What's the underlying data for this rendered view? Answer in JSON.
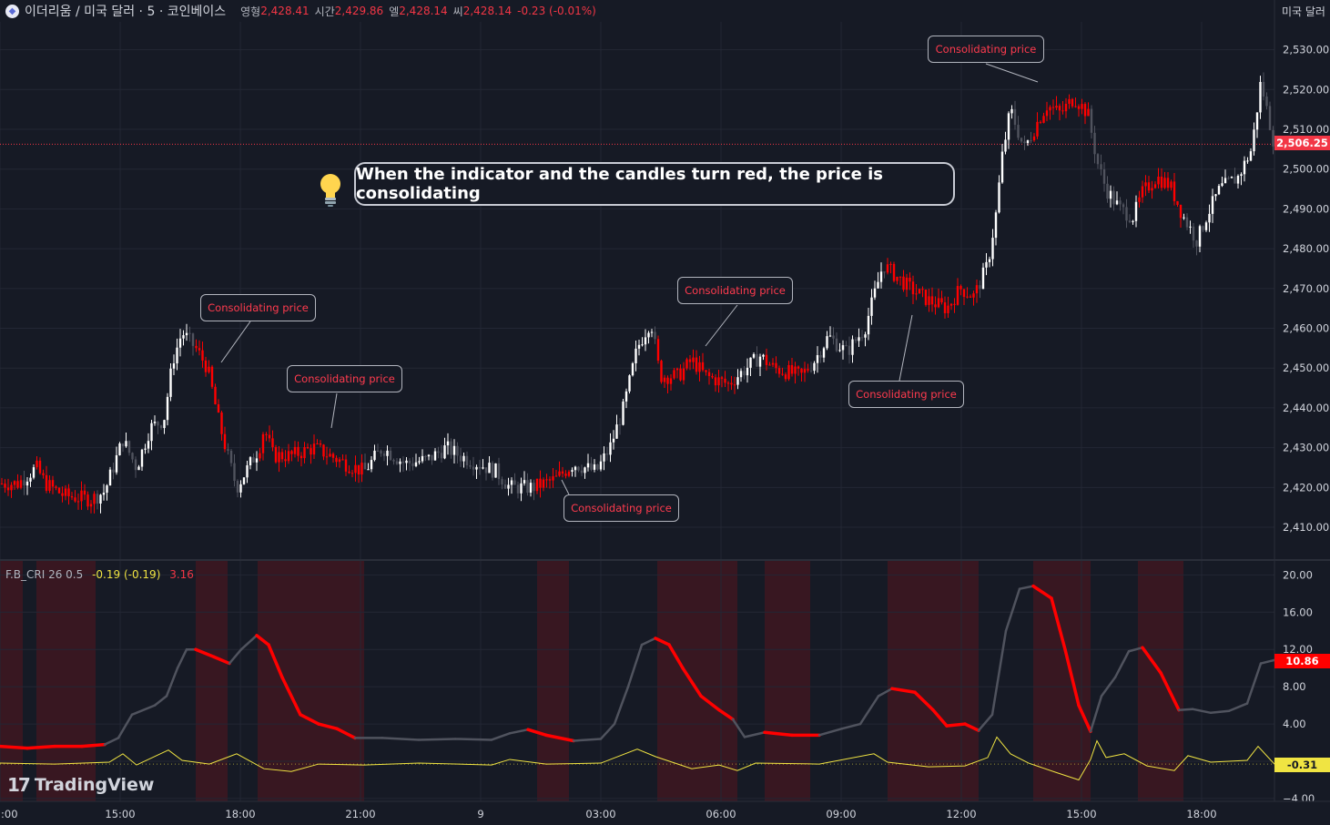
{
  "header": {
    "symbol": "이더리움 / 미국 달러 · 5 · 코인베이스",
    "open_label": "영형",
    "open": "2,428.41",
    "high_label": "시간",
    "high": "2,429.86",
    "low_label": "엘",
    "low": "2,428.14",
    "close_label": "씨",
    "close": "2,428.14",
    "change": "-0.23 (-0.01%)"
  },
  "currency_unit": "미국 달러",
  "indicator": {
    "name": "F.B_CRI 26 0.5",
    "value1": "-0.19 (-0.19)",
    "value2": "3.16"
  },
  "callout": {
    "text": "When the indicator and the candles turn red, the price is consolidating"
  },
  "annotations": {
    "label": "Consolidating price"
  },
  "current_price_label": "2,506.25",
  "indicator_last_label": "10.86",
  "indicator_signal_label": "-0.31",
  "branding": {
    "text": "TradingView"
  },
  "colors": {
    "bg": "#161a25",
    "red": "#f23645",
    "consolidating": "#ff0000",
    "signal": "#f0e442",
    "neutral": "#50535e",
    "shade": "rgba(120,20,25,0.35)"
  },
  "chart_data": [
    {
      "type": "candlestick",
      "title": "이더리움 / 미국 달러 · 5 · 코인베이스",
      "y_axis_ticks": [
        2410,
        2420,
        2430,
        2440,
        2450,
        2460,
        2470,
        2480,
        2490,
        2500,
        2510,
        2520,
        2530
      ],
      "y_axis_tick_labels": [
        "2,410.00",
        "2,420.00",
        "2,430.00",
        "2,440.00",
        "2,450.00",
        "2,460.00",
        "2,470.00",
        "2,480.00",
        "2,490.00",
        "2,500.00",
        "2,510.00",
        "2,520.00",
        "2,530.00"
      ],
      "x_axis_ticks": [
        ":00",
        "15:00",
        "18:00",
        "21:00",
        "9",
        "03:00",
        "06:00",
        "09:00",
        "12:00",
        "15:00",
        "18:00"
      ],
      "ylim": [
        2402,
        2537
      ],
      "current_price": 2506.25,
      "close_path": [
        {
          "t": 0,
          "p": 2421
        },
        {
          "t": 20,
          "p": 2421
        },
        {
          "t": 40,
          "p": 2425
        },
        {
          "t": 50,
          "p": 2421
        },
        {
          "t": 70,
          "p": 2418
        },
        {
          "t": 100,
          "p": 2417
        },
        {
          "t": 115,
          "p": 2419
        },
        {
          "t": 135,
          "p": 2432
        },
        {
          "t": 150,
          "p": 2425
        },
        {
          "t": 165,
          "p": 2435
        },
        {
          "t": 180,
          "p": 2437
        },
        {
          "t": 190,
          "p": 2452
        },
        {
          "t": 200,
          "p": 2459
        },
        {
          "t": 215,
          "p": 2455
        },
        {
          "t": 228,
          "p": 2450
        },
        {
          "t": 240,
          "p": 2437
        },
        {
          "t": 250,
          "p": 2428
        },
        {
          "t": 260,
          "p": 2420
        },
        {
          "t": 270,
          "p": 2424
        },
        {
          "t": 285,
          "p": 2430
        },
        {
          "t": 290,
          "p": 2435
        },
        {
          "t": 300,
          "p": 2428
        },
        {
          "t": 320,
          "p": 2428
        },
        {
          "t": 345,
          "p": 2430
        },
        {
          "t": 380,
          "p": 2426
        },
        {
          "t": 400,
          "p": 2424
        },
        {
          "t": 420,
          "p": 2430
        },
        {
          "t": 445,
          "p": 2426
        },
        {
          "t": 470,
          "p": 2427
        },
        {
          "t": 490,
          "p": 2430
        },
        {
          "t": 505,
          "p": 2428
        },
        {
          "t": 525,
          "p": 2426
        },
        {
          "t": 545,
          "p": 2424
        },
        {
          "t": 560,
          "p": 2420
        },
        {
          "t": 585,
          "p": 2420
        },
        {
          "t": 610,
          "p": 2422
        },
        {
          "t": 630,
          "p": 2426
        },
        {
          "t": 655,
          "p": 2424
        },
        {
          "t": 670,
          "p": 2430
        },
        {
          "t": 685,
          "p": 2440
        },
        {
          "t": 700,
          "p": 2455
        },
        {
          "t": 715,
          "p": 2462
        },
        {
          "t": 725,
          "p": 2448
        },
        {
          "t": 745,
          "p": 2448
        },
        {
          "t": 760,
          "p": 2452
        },
        {
          "t": 775,
          "p": 2448
        },
        {
          "t": 800,
          "p": 2446
        },
        {
          "t": 820,
          "p": 2450
        },
        {
          "t": 835,
          "p": 2453
        },
        {
          "t": 850,
          "p": 2450
        },
        {
          "t": 880,
          "p": 2448
        },
        {
          "t": 895,
          "p": 2452
        },
        {
          "t": 910,
          "p": 2458
        },
        {
          "t": 930,
          "p": 2454
        },
        {
          "t": 950,
          "p": 2460
        },
        {
          "t": 970,
          "p": 2476
        },
        {
          "t": 985,
          "p": 2473
        },
        {
          "t": 1000,
          "p": 2470
        },
        {
          "t": 1020,
          "p": 2467
        },
        {
          "t": 1040,
          "p": 2465
        },
        {
          "t": 1055,
          "p": 2470
        },
        {
          "t": 1070,
          "p": 2468
        },
        {
          "t": 1085,
          "p": 2476
        },
        {
          "t": 1095,
          "p": 2490
        },
        {
          "t": 1100,
          "p": 2502
        },
        {
          "t": 1110,
          "p": 2515
        },
        {
          "t": 1125,
          "p": 2505
        },
        {
          "t": 1140,
          "p": 2512
        },
        {
          "t": 1150,
          "p": 2516
        },
        {
          "t": 1165,
          "p": 2514
        },
        {
          "t": 1180,
          "p": 2518
        },
        {
          "t": 1195,
          "p": 2514
        },
        {
          "t": 1205,
          "p": 2502
        },
        {
          "t": 1215,
          "p": 2495
        },
        {
          "t": 1230,
          "p": 2490
        },
        {
          "t": 1245,
          "p": 2488
        },
        {
          "t": 1255,
          "p": 2494
        },
        {
          "t": 1270,
          "p": 2498
        },
        {
          "t": 1285,
          "p": 2496
        },
        {
          "t": 1300,
          "p": 2488
        },
        {
          "t": 1315,
          "p": 2482
        },
        {
          "t": 1325,
          "p": 2488
        },
        {
          "t": 1340,
          "p": 2495
        },
        {
          "t": 1360,
          "p": 2498
        },
        {
          "t": 1375,
          "p": 2505
        },
        {
          "t": 1385,
          "p": 2522
        },
        {
          "t": 1400,
          "p": 2506
        }
      ],
      "consolidation_zones": [
        [
          0,
          25
        ],
        [
          40,
          105
        ],
        [
          215,
          250
        ],
        [
          283,
          400
        ],
        [
          590,
          625
        ],
        [
          722,
          810
        ],
        [
          840,
          890
        ],
        [
          975,
          1075
        ],
        [
          1135,
          1198
        ],
        [
          1250,
          1300
        ]
      ]
    },
    {
      "type": "line",
      "title": "F.B_CRI 26 0.5",
      "y_axis_ticks": [
        -4,
        0,
        4,
        8,
        12,
        16,
        20
      ],
      "y_axis_tick_labels": [
        "−4.00",
        "",
        "4.00",
        "8.00",
        "12.00",
        "16.00",
        "20.00"
      ],
      "ylim": [
        -4.3,
        21.5
      ],
      "series": [
        {
          "points": [
            {
              "t": 0,
              "v": 1.6
            },
            {
              "t": 30,
              "v": 1.4
            },
            {
              "t": 60,
              "v": 1.6
            },
            {
              "t": 90,
              "v": 1.6
            },
            {
              "t": 115,
              "v": 1.8
            },
            {
              "t": 130,
              "v": 2.5
            },
            {
              "t": 145,
              "v": 5
            },
            {
              "t": 170,
              "v": 6
            },
            {
              "t": 183,
              "v": 7
            },
            {
              "t": 195,
              "v": 10
            },
            {
              "t": 205,
              "v": 12
            },
            {
              "t": 215,
              "v": 12
            },
            {
              "t": 235,
              "v": 11.2
            },
            {
              "t": 252,
              "v": 10.5
            },
            {
              "t": 265,
              "v": 12
            },
            {
              "t": 282,
              "v": 13.5
            },
            {
              "t": 295,
              "v": 12.5
            },
            {
              "t": 310,
              "v": 9
            },
            {
              "t": 330,
              "v": 5
            },
            {
              "t": 350,
              "v": 4
            },
            {
              "t": 370,
              "v": 3.5
            },
            {
              "t": 390,
              "v": 2.5
            },
            {
              "t": 420,
              "v": 2.5
            },
            {
              "t": 460,
              "v": 2.3
            },
            {
              "t": 500,
              "v": 2.4
            },
            {
              "t": 540,
              "v": 2.3
            },
            {
              "t": 560,
              "v": 3
            },
            {
              "t": 580,
              "v": 3.4
            },
            {
              "t": 600,
              "v": 2.8
            },
            {
              "t": 630,
              "v": 2.2
            },
            {
              "t": 660,
              "v": 2.4
            },
            {
              "t": 675,
              "v": 4
            },
            {
              "t": 690,
              "v": 8
            },
            {
              "t": 705,
              "v": 12.5
            },
            {
              "t": 720,
              "v": 13.2
            },
            {
              "t": 735,
              "v": 12.5
            },
            {
              "t": 750,
              "v": 10
            },
            {
              "t": 770,
              "v": 7
            },
            {
              "t": 790,
              "v": 5.5
            },
            {
              "t": 805,
              "v": 4.5
            },
            {
              "t": 818,
              "v": 2.6
            },
            {
              "t": 840,
              "v": 3.1
            },
            {
              "t": 870,
              "v": 2.8
            },
            {
              "t": 900,
              "v": 2.8
            },
            {
              "t": 925,
              "v": 3.5
            },
            {
              "t": 945,
              "v": 4
            },
            {
              "t": 965,
              "v": 7
            },
            {
              "t": 980,
              "v": 7.8
            },
            {
              "t": 1005,
              "v": 7.4
            },
            {
              "t": 1025,
              "v": 5.5
            },
            {
              "t": 1040,
              "v": 3.8
            },
            {
              "t": 1060,
              "v": 4
            },
            {
              "t": 1075,
              "v": 3.3
            },
            {
              "t": 1090,
              "v": 5
            },
            {
              "t": 1105,
              "v": 14
            },
            {
              "t": 1120,
              "v": 18.5
            },
            {
              "t": 1135,
              "v": 18.8
            },
            {
              "t": 1155,
              "v": 17.5
            },
            {
              "t": 1170,
              "v": 12
            },
            {
              "t": 1185,
              "v": 6
            },
            {
              "t": 1198,
              "v": 3.2
            },
            {
              "t": 1210,
              "v": 7
            },
            {
              "t": 1225,
              "v": 9
            },
            {
              "t": 1240,
              "v": 11.8
            },
            {
              "t": 1255,
              "v": 12.2
            },
            {
              "t": 1275,
              "v": 9.5
            },
            {
              "t": 1295,
              "v": 5.5
            },
            {
              "t": 1310,
              "v": 5.6
            },
            {
              "t": 1330,
              "v": 5.2
            },
            {
              "t": 1350,
              "v": 5.4
            },
            {
              "t": 1370,
              "v": 6.2
            },
            {
              "t": 1385,
              "v": 10.5
            },
            {
              "t": 1400,
              "v": 10.86
            }
          ]
        },
        {
          "points": [
            {
              "t": 0,
              "v": -0.2
            },
            {
              "t": 60,
              "v": -0.3
            },
            {
              "t": 120,
              "v": -0.1
            },
            {
              "t": 135,
              "v": 0.8
            },
            {
              "t": 150,
              "v": -0.4
            },
            {
              "t": 185,
              "v": 1.2
            },
            {
              "t": 200,
              "v": 0.1
            },
            {
              "t": 230,
              "v": -0.3
            },
            {
              "t": 260,
              "v": 0.8
            },
            {
              "t": 290,
              "v": -0.8
            },
            {
              "t": 320,
              "v": -1.1
            },
            {
              "t": 350,
              "v": -0.3
            },
            {
              "t": 400,
              "v": -0.4
            },
            {
              "t": 460,
              "v": -0.2
            },
            {
              "t": 540,
              "v": -0.4
            },
            {
              "t": 560,
              "v": 0.2
            },
            {
              "t": 600,
              "v": -0.3
            },
            {
              "t": 660,
              "v": -0.2
            },
            {
              "t": 700,
              "v": 1.3
            },
            {
              "t": 720,
              "v": 0.5
            },
            {
              "t": 760,
              "v": -0.8
            },
            {
              "t": 790,
              "v": -0.4
            },
            {
              "t": 810,
              "v": -1.0
            },
            {
              "t": 830,
              "v": -0.2
            },
            {
              "t": 900,
              "v": -0.3
            },
            {
              "t": 960,
              "v": 0.8
            },
            {
              "t": 975,
              "v": -0.1
            },
            {
              "t": 1020,
              "v": -0.6
            },
            {
              "t": 1060,
              "v": -0.5
            },
            {
              "t": 1085,
              "v": 0.4
            },
            {
              "t": 1095,
              "v": 2.6
            },
            {
              "t": 1110,
              "v": 0.8
            },
            {
              "t": 1130,
              "v": -0.2
            },
            {
              "t": 1160,
              "v": -1.2
            },
            {
              "t": 1185,
              "v": -2.0
            },
            {
              "t": 1198,
              "v": 0.2
            },
            {
              "t": 1205,
              "v": 2.2
            },
            {
              "t": 1215,
              "v": 0.4
            },
            {
              "t": 1235,
              "v": 0.8
            },
            {
              "t": 1260,
              "v": -0.5
            },
            {
              "t": 1290,
              "v": -1.0
            },
            {
              "t": 1305,
              "v": 0.6
            },
            {
              "t": 1330,
              "v": -0.1
            },
            {
              "t": 1370,
              "v": 0.1
            },
            {
              "t": 1382,
              "v": 1.6
            },
            {
              "t": 1400,
              "v": -0.31
            }
          ]
        }
      ]
    }
  ]
}
